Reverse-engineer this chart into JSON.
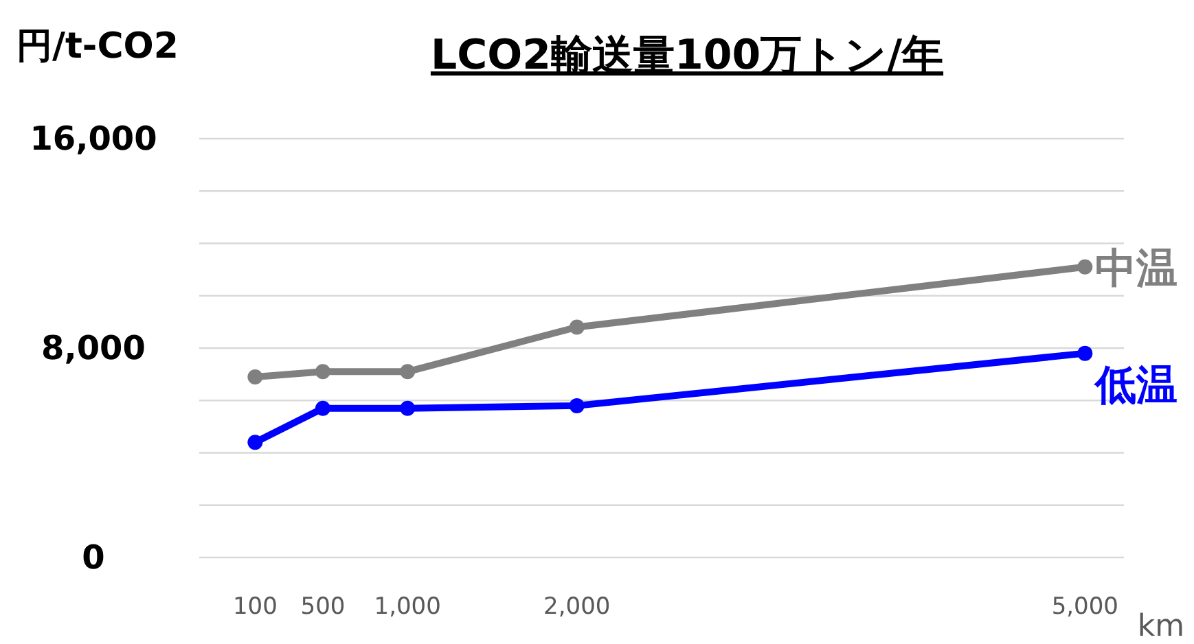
{
  "chart_data": {
    "type": "line",
    "title": "LCO2輸送量100万トン/年",
    "ylabel": "円/t-CO2",
    "xlabel": "km",
    "x": [
      100,
      500,
      1000,
      2000,
      5000
    ],
    "xlim": [
      -230,
      5230
    ],
    "xticks": [
      {
        "value": 100,
        "label": "100"
      },
      {
        "value": 500,
        "label": "500"
      },
      {
        "value": 1000,
        "label": "1,000"
      },
      {
        "value": 2000,
        "label": "2,000"
      },
      {
        "value": 5000,
        "label": "5,000"
      }
    ],
    "ylim": [
      0,
      16000
    ],
    "yticks": [
      {
        "value": 0,
        "label": "0"
      },
      {
        "value": 2000,
        "label": null
      },
      {
        "value": 4000,
        "label": null
      },
      {
        "value": 6000,
        "label": null
      },
      {
        "value": 8000,
        "label": "8,000"
      },
      {
        "value": 10000,
        "label": null
      },
      {
        "value": 12000,
        "label": null
      },
      {
        "value": 14000,
        "label": null
      },
      {
        "value": 16000,
        "label": "16,000"
      }
    ],
    "grid": "y",
    "marker": "circle",
    "line_style": "solid",
    "series": [
      {
        "name": "中温",
        "color": "#808080",
        "values": [
          6900,
          7100,
          7100,
          8800,
          11100
        ]
      },
      {
        "name": "低温",
        "color": "#0000ff",
        "values": [
          4400,
          5700,
          5700,
          5800,
          7800
        ]
      }
    ]
  }
}
